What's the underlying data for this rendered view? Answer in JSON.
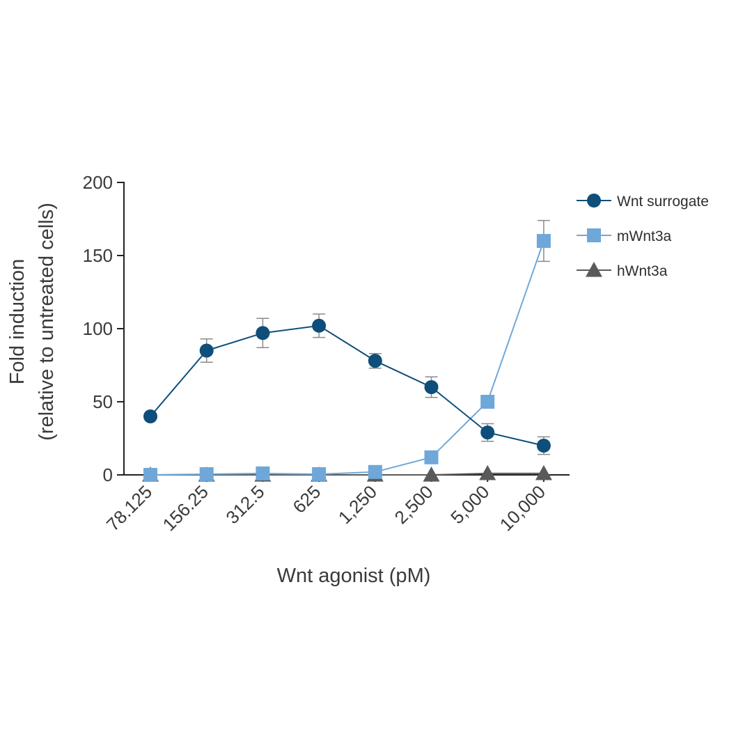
{
  "chart_data": {
    "type": "line",
    "title": "",
    "xlabel": "Wnt agonist (pM)",
    "ylabel_line1": "Fold induction",
    "ylabel_line2": "(relative to untreated cells)",
    "categories": [
      "78.125",
      "156.25",
      "312.5",
      "625",
      "1,250",
      "2,500",
      "5,000",
      "10,000"
    ],
    "ylim": [
      0,
      200
    ],
    "yticks": [
      0,
      50,
      100,
      150,
      200
    ],
    "ytick_labels": [
      "0",
      "50",
      "100",
      "150",
      "200"
    ],
    "grid": false,
    "legend_position": "top-right",
    "series": [
      {
        "name": "Wnt surrogate",
        "marker": "circle",
        "color": "#0d4e7a",
        "values": [
          40,
          85,
          97,
          102,
          78,
          60,
          29,
          20
        ],
        "errors": [
          0,
          8,
          10,
          8,
          5,
          7,
          6,
          6
        ]
      },
      {
        "name": "mWnt3a",
        "marker": "square",
        "color": "#6fa8d8",
        "values": [
          0,
          0.5,
          1,
          0.5,
          2,
          12,
          50,
          160
        ],
        "errors": [
          0,
          0,
          0,
          0,
          0,
          0,
          0,
          14
        ]
      },
      {
        "name": "hWnt3a",
        "marker": "triangle",
        "color": "#5a5a5a",
        "values": [
          0,
          0,
          0,
          0,
          0,
          0,
          1,
          1
        ],
        "errors": [
          0,
          0,
          0,
          0,
          0,
          0,
          0,
          0
        ]
      }
    ]
  }
}
